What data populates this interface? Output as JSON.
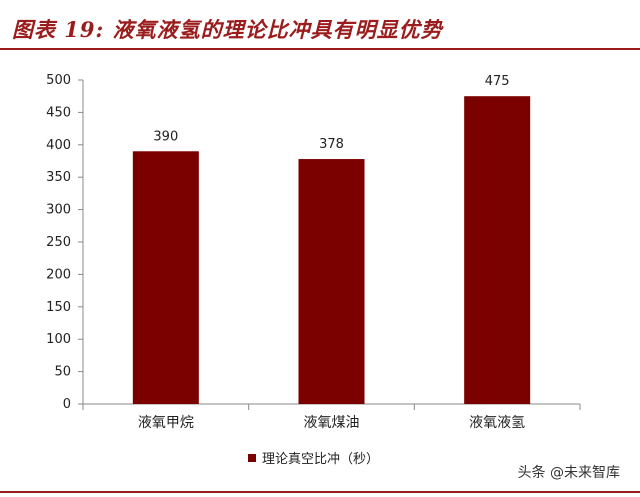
{
  "figure_title": "图表 19:  液氧液氢的理论比冲具有明显优势",
  "watermark": {
    "text": "头条 @未来智库",
    "icon": "camera-icon"
  },
  "colors": {
    "accent": "#9a1c1c",
    "bar": "#7b0000",
    "axis": "#888888"
  },
  "chart_data": {
    "type": "bar",
    "title": "",
    "xlabel": "",
    "ylabel": "",
    "ylim": [
      0,
      500
    ],
    "yticks": [
      0,
      50,
      100,
      150,
      200,
      250,
      300,
      350,
      400,
      450,
      500
    ],
    "grid": false,
    "legend_position": "bottom",
    "categories": [
      "液氧甲烷",
      "液氧煤油",
      "液氧液氢"
    ],
    "series": [
      {
        "name": "理论真空比冲（秒）",
        "values": [
          390,
          378,
          475
        ],
        "data_labels": [
          "390",
          "378",
          "475"
        ]
      }
    ]
  }
}
